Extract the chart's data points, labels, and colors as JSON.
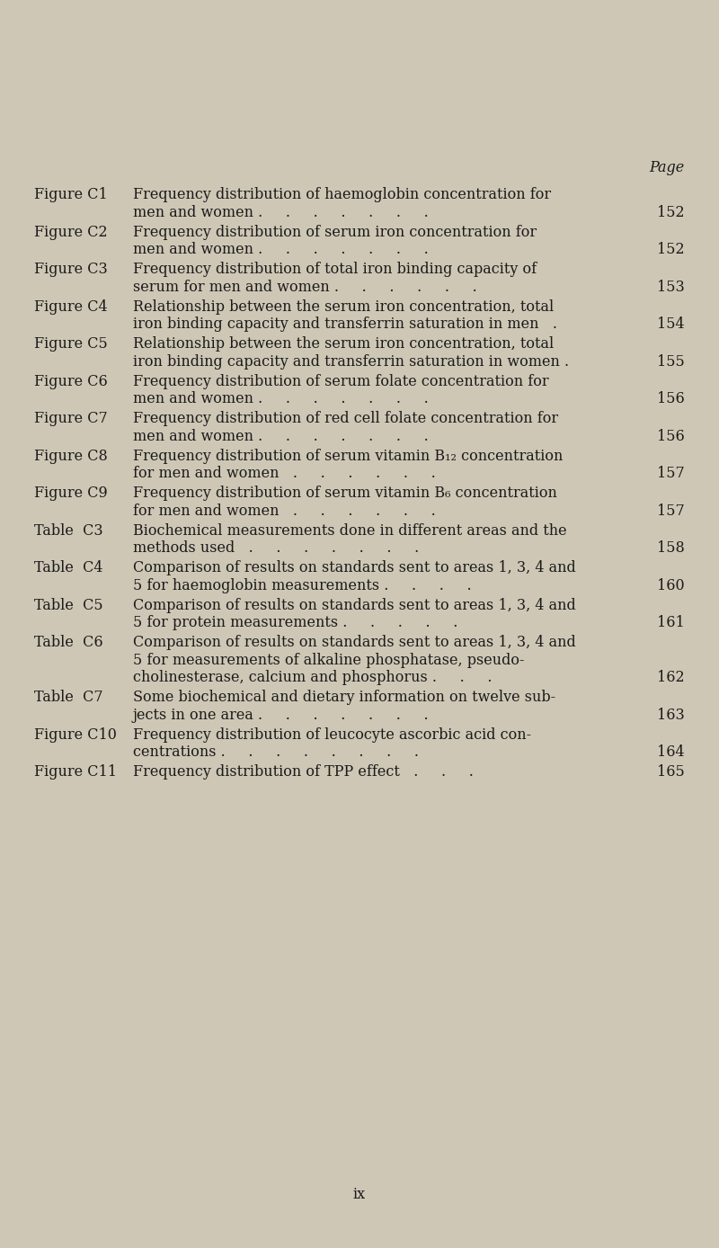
{
  "background_color": "#cec7b5",
  "text_color": "#1a1a1a",
  "figsize": [
    8.0,
    13.88
  ],
  "dpi": 100,
  "page_label": "Page",
  "footer_text": "ix",
  "entries": [
    {
      "label": "Figure C1",
      "description_lines": [
        "Frequency distribution of haemoglobin concentration for",
        "men and women .     .     .     .     .     .     ."
      ],
      "page": "152"
    },
    {
      "label": "Figure C2",
      "description_lines": [
        "Frequency distribution of serum iron concentration for",
        "men and women .     .     .     .     .     .     ."
      ],
      "page": "152"
    },
    {
      "label": "Figure C3",
      "description_lines": [
        "Frequency distribution of total iron binding capacity of",
        "serum for men and women .     .     .     .     .     ."
      ],
      "page": "153"
    },
    {
      "label": "Figure C4",
      "description_lines": [
        "Relationship between the serum iron concentration, total",
        "iron binding capacity and transferrin saturation in men   ."
      ],
      "page": "154"
    },
    {
      "label": "Figure C5",
      "description_lines": [
        "Relationship between the serum iron concentration, total",
        "iron binding capacity and transferrin saturation in women ."
      ],
      "page": "155"
    },
    {
      "label": "Figure C6",
      "description_lines": [
        "Frequency distribution of serum folate concentration for",
        "men and women .     .     .     .     .     .     ."
      ],
      "page": "156"
    },
    {
      "label": "Figure C7",
      "description_lines": [
        "Frequency distribution of red cell folate concentration for",
        "men and women .     .     .     .     .     .     ."
      ],
      "page": "156"
    },
    {
      "label": "Figure C8",
      "description_lines": [
        "Frequency distribution of serum vitamin B₁₂ concentration",
        "for men and women   .     .     .     .     .     ."
      ],
      "page": "157"
    },
    {
      "label": "Figure C9",
      "description_lines": [
        "Frequency distribution of serum vitamin B₆ concentration",
        "for men and women   .     .     .     .     .     ."
      ],
      "page": "157"
    },
    {
      "label": "Table  C3",
      "description_lines": [
        "Biochemical measurements done in different areas and the",
        "methods used   .     .     .     .     .     .     ."
      ],
      "page": "158"
    },
    {
      "label": "Table  C4",
      "description_lines": [
        "Comparison of results on standards sent to areas 1, 3, 4 and",
        "5 for haemoglobin measurements .     .     .     ."
      ],
      "page": "160"
    },
    {
      "label": "Table  C5",
      "description_lines": [
        "Comparison of results on standards sent to areas 1, 3, 4 and",
        "5 for protein measurements .     .     .     .     ."
      ],
      "page": "161"
    },
    {
      "label": "Table  C6",
      "description_lines": [
        "Comparison of results on standards sent to areas 1, 3, 4 and",
        "5 for measurements of alkaline phosphatase, pseudo-",
        "cholinesterase, calcium and phosphorus .     .     ."
      ],
      "page": "162"
    },
    {
      "label": "Table  C7",
      "description_lines": [
        "Some biochemical and dietary information on twelve sub-",
        "jects in one area .     .     .     .     .     .     ."
      ],
      "page": "163"
    },
    {
      "label": "Figure C10",
      "description_lines": [
        "Frequency distribution of leucocyte ascorbic acid con-",
        "centrations .     .     .     .     .     .     .     ."
      ],
      "page": "164"
    },
    {
      "label": "Figure C11",
      "description_lines": [
        "Frequency distribution of TPP effect   .     .     ."
      ],
      "page": "165"
    }
  ]
}
